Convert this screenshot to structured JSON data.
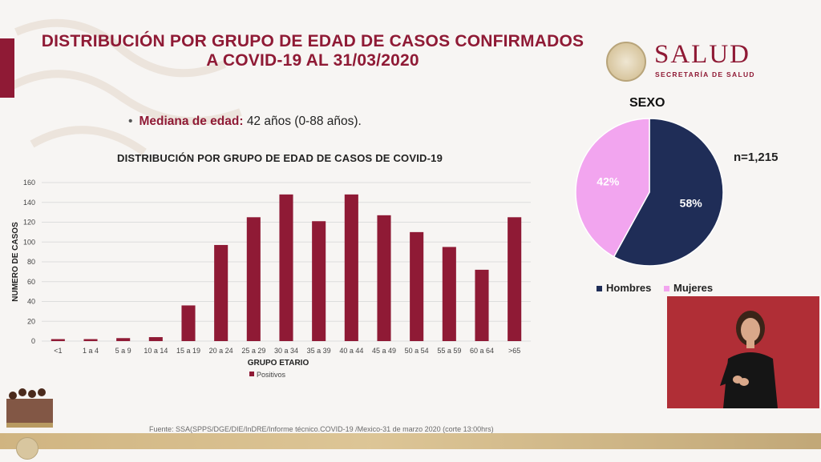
{
  "header": {
    "title_line1": "DISTRIBUCIÓN POR GRUPO DE EDAD DE CASOS CONFIRMADOS",
    "title_line2": "A COVID-19 AL 31/03/2020",
    "logo_main": "SALUD",
    "logo_sub": "SECRETARÍA DE SALUD"
  },
  "bullet": {
    "label": "Mediana de edad:",
    "value": "42 años (0-88 años)."
  },
  "colors": {
    "brand": "#8f1a35",
    "bar": "#8f1a35",
    "hombres": "#1f2d57",
    "mujeres": "#f2a5ef"
  },
  "chart_data": [
    {
      "type": "bar",
      "title": "DISTRIBUCIÓN POR GRUPO DE EDAD DE CASOS DE COVID-19",
      "xlabel": "GRUPO ETARIO",
      "ylabel": "NUMERO DE CASOS",
      "ylim": [
        0,
        160
      ],
      "yticks": [
        0,
        20,
        40,
        60,
        80,
        100,
        120,
        140,
        160
      ],
      "grid": true,
      "categories": [
        "<1",
        "1 a 4",
        "5 a 9",
        "10 a 14",
        "15 a 19",
        "20 a 24",
        "25 a 29",
        "30 a 34",
        "35 a 39",
        "40 a 44",
        "45 a 49",
        "50 a 54",
        "55 a 59",
        "60 a 64",
        ">65"
      ],
      "series": [
        {
          "name": "Positivos",
          "values": [
            2,
            2,
            3,
            4,
            36,
            97,
            125,
            148,
            121,
            148,
            127,
            110,
            95,
            72,
            125
          ]
        }
      ],
      "legend": "bottom"
    },
    {
      "type": "pie",
      "title": "SEXO",
      "total_label": "n=1,215",
      "slices": [
        {
          "name": "Hombres",
          "value": 58,
          "label": "58%"
        },
        {
          "name": "Mujeres",
          "value": 42,
          "label": "42%"
        }
      ],
      "legend": "bottom"
    }
  ],
  "footer": {
    "source": "Fuente: SSA(SPPS/DGE/DIE/InDRE/Informe técnico.COVID-19 /Mexico-31 de marzo 2020 (corte 13:00hrs)"
  }
}
